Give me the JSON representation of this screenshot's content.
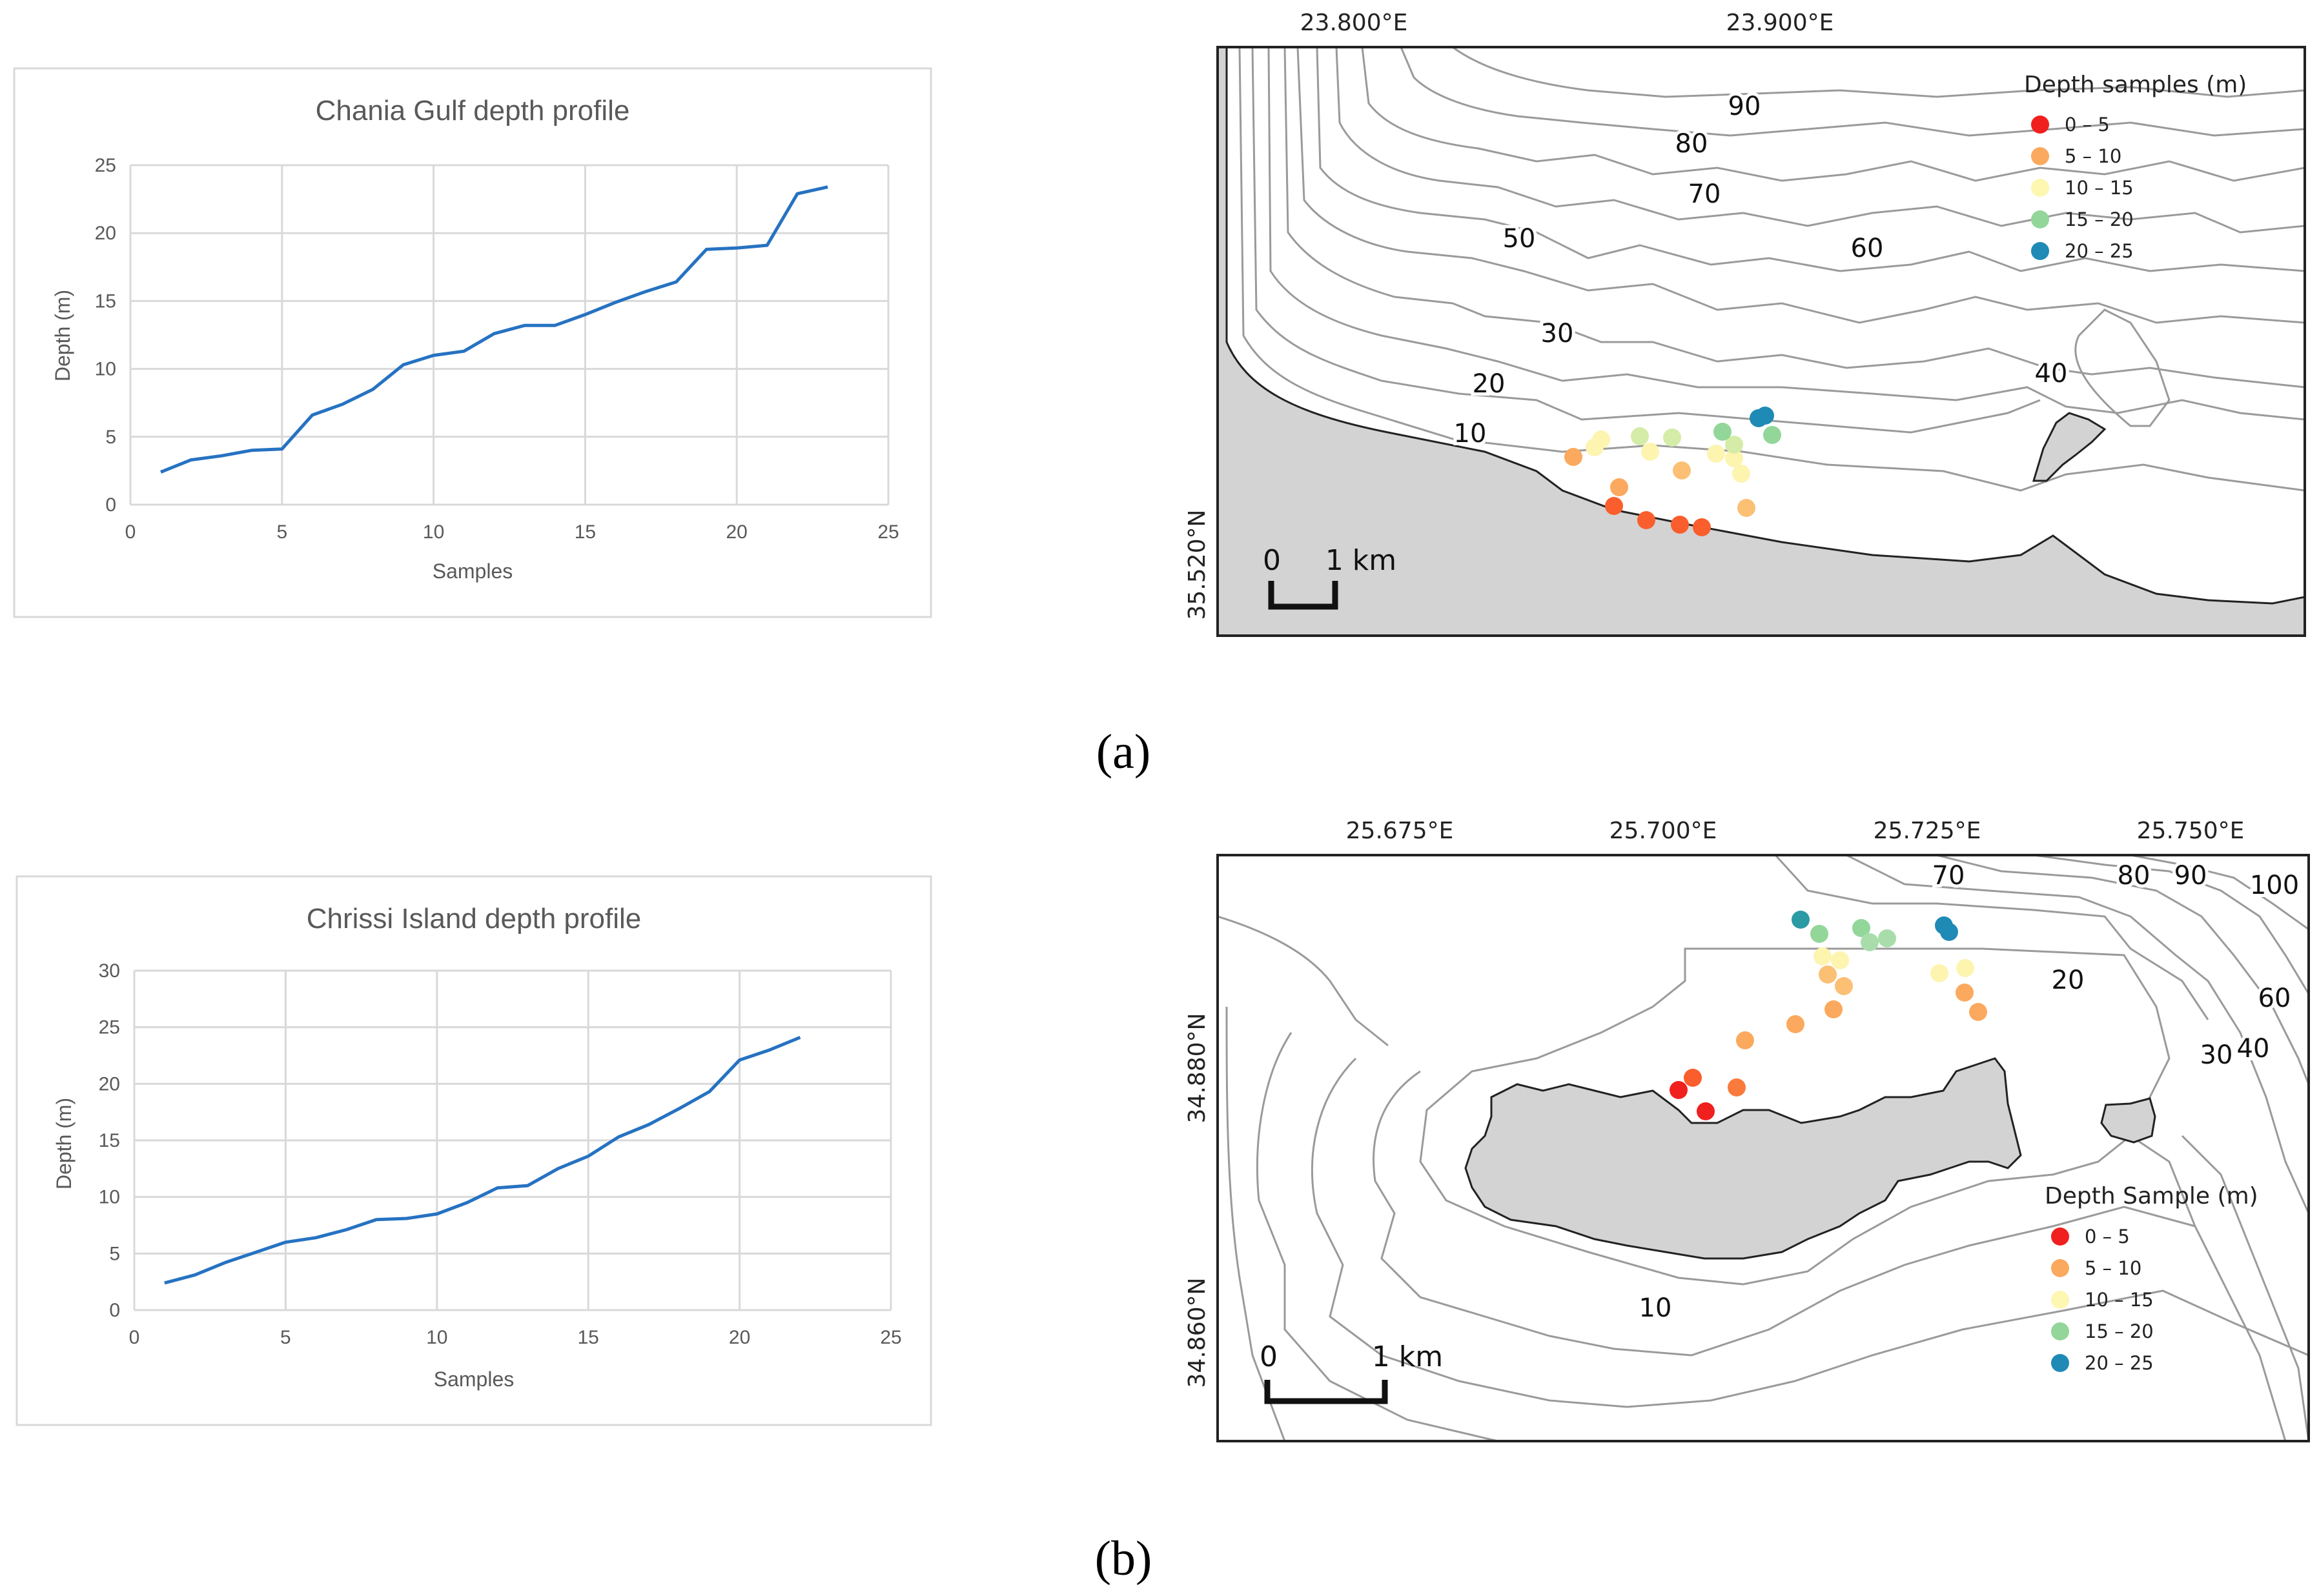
{
  "panel_labels": {
    "a": "(a)",
    "b": "(b)"
  },
  "colors": {
    "line": "#2672c2",
    "grid": "#d9d9d9",
    "land": "#d3d3d3",
    "class_0_5": "#f0201e",
    "class_5_10": "#fba95e",
    "class_10_15": "#fdf7b2",
    "class_15_20": "#93d69a",
    "class_20_25": "#1f8ab5"
  },
  "chart_data": [
    {
      "type": "line",
      "title": "Chania Gulf depth profile",
      "xlabel": "Samples",
      "ylabel": "Depth (m)",
      "xlim": [
        0,
        25
      ],
      "ylim": [
        0,
        25
      ],
      "xticks": [
        "0",
        "5",
        "10",
        "15",
        "20",
        "25"
      ],
      "yticks": [
        "0",
        "5",
        "10",
        "15",
        "20",
        "25"
      ],
      "x": [
        1,
        2,
        3,
        4,
        5,
        6,
        7,
        8,
        9,
        10,
        11,
        12,
        13,
        14,
        15,
        16,
        17,
        18,
        19,
        20,
        21,
        22,
        23
      ],
      "values": [
        2.4,
        3.3,
        3.6,
        4.0,
        4.1,
        6.6,
        7.4,
        8.5,
        10.3,
        11.0,
        11.3,
        12.6,
        13.2,
        13.2,
        14.0,
        14.9,
        15.7,
        16.4,
        18.8,
        18.9,
        19.1,
        22.9,
        23.4
      ]
    },
    {
      "type": "line",
      "title": "Chrissi Island depth profile",
      "xlabel": "Samples",
      "ylabel": "Depth (m)",
      "xlim": [
        0,
        25
      ],
      "ylim": [
        0,
        30
      ],
      "xticks": [
        "0",
        "5",
        "10",
        "15",
        "20",
        "25"
      ],
      "yticks": [
        "0",
        "5",
        "10",
        "15",
        "20",
        "25",
        "30"
      ],
      "x": [
        1,
        2,
        3,
        4,
        5,
        6,
        7,
        8,
        9,
        10,
        11,
        12,
        13,
        14,
        15,
        16,
        17,
        18,
        19,
        20,
        21,
        22
      ],
      "values": [
        2.4,
        3.1,
        4.2,
        5.1,
        6.0,
        6.4,
        7.1,
        8.0,
        8.1,
        8.5,
        9.5,
        10.8,
        11.0,
        12.5,
        13.6,
        15.3,
        16.4,
        17.8,
        19.3,
        22.1,
        23.0,
        24.1
      ]
    }
  ],
  "maps": [
    {
      "lon_labels": [
        "23.800°E",
        "23.900°E"
      ],
      "lat_labels": [
        "35.520°N"
      ],
      "contour_labels": [
        "90",
        "80",
        "70",
        "50",
        "60",
        "30",
        "20",
        "40",
        "10"
      ],
      "legend_title": "Depth samples (m)",
      "legend_items": [
        "0 – 5",
        "5 – 10",
        "10 – 15",
        "15 – 20",
        "20 – 25"
      ],
      "scale": {
        "zero": "0",
        "unit": "1 km"
      }
    },
    {
      "lon_labels": [
        "25.675°E",
        "25.700°E",
        "25.725°E",
        "25.750°E"
      ],
      "lat_labels": [
        "34.880°N",
        "34.860°N"
      ],
      "contour_labels": [
        "70",
        "80",
        "90",
        "100",
        "20",
        "60",
        "30",
        "40",
        "10"
      ],
      "legend_title": "Depth Sample (m)",
      "legend_items": [
        "0 – 5",
        "5 – 10",
        "10 – 15",
        "15 – 20",
        "20 – 25"
      ],
      "scale": {
        "zero": "0",
        "unit": "1 km"
      }
    }
  ]
}
